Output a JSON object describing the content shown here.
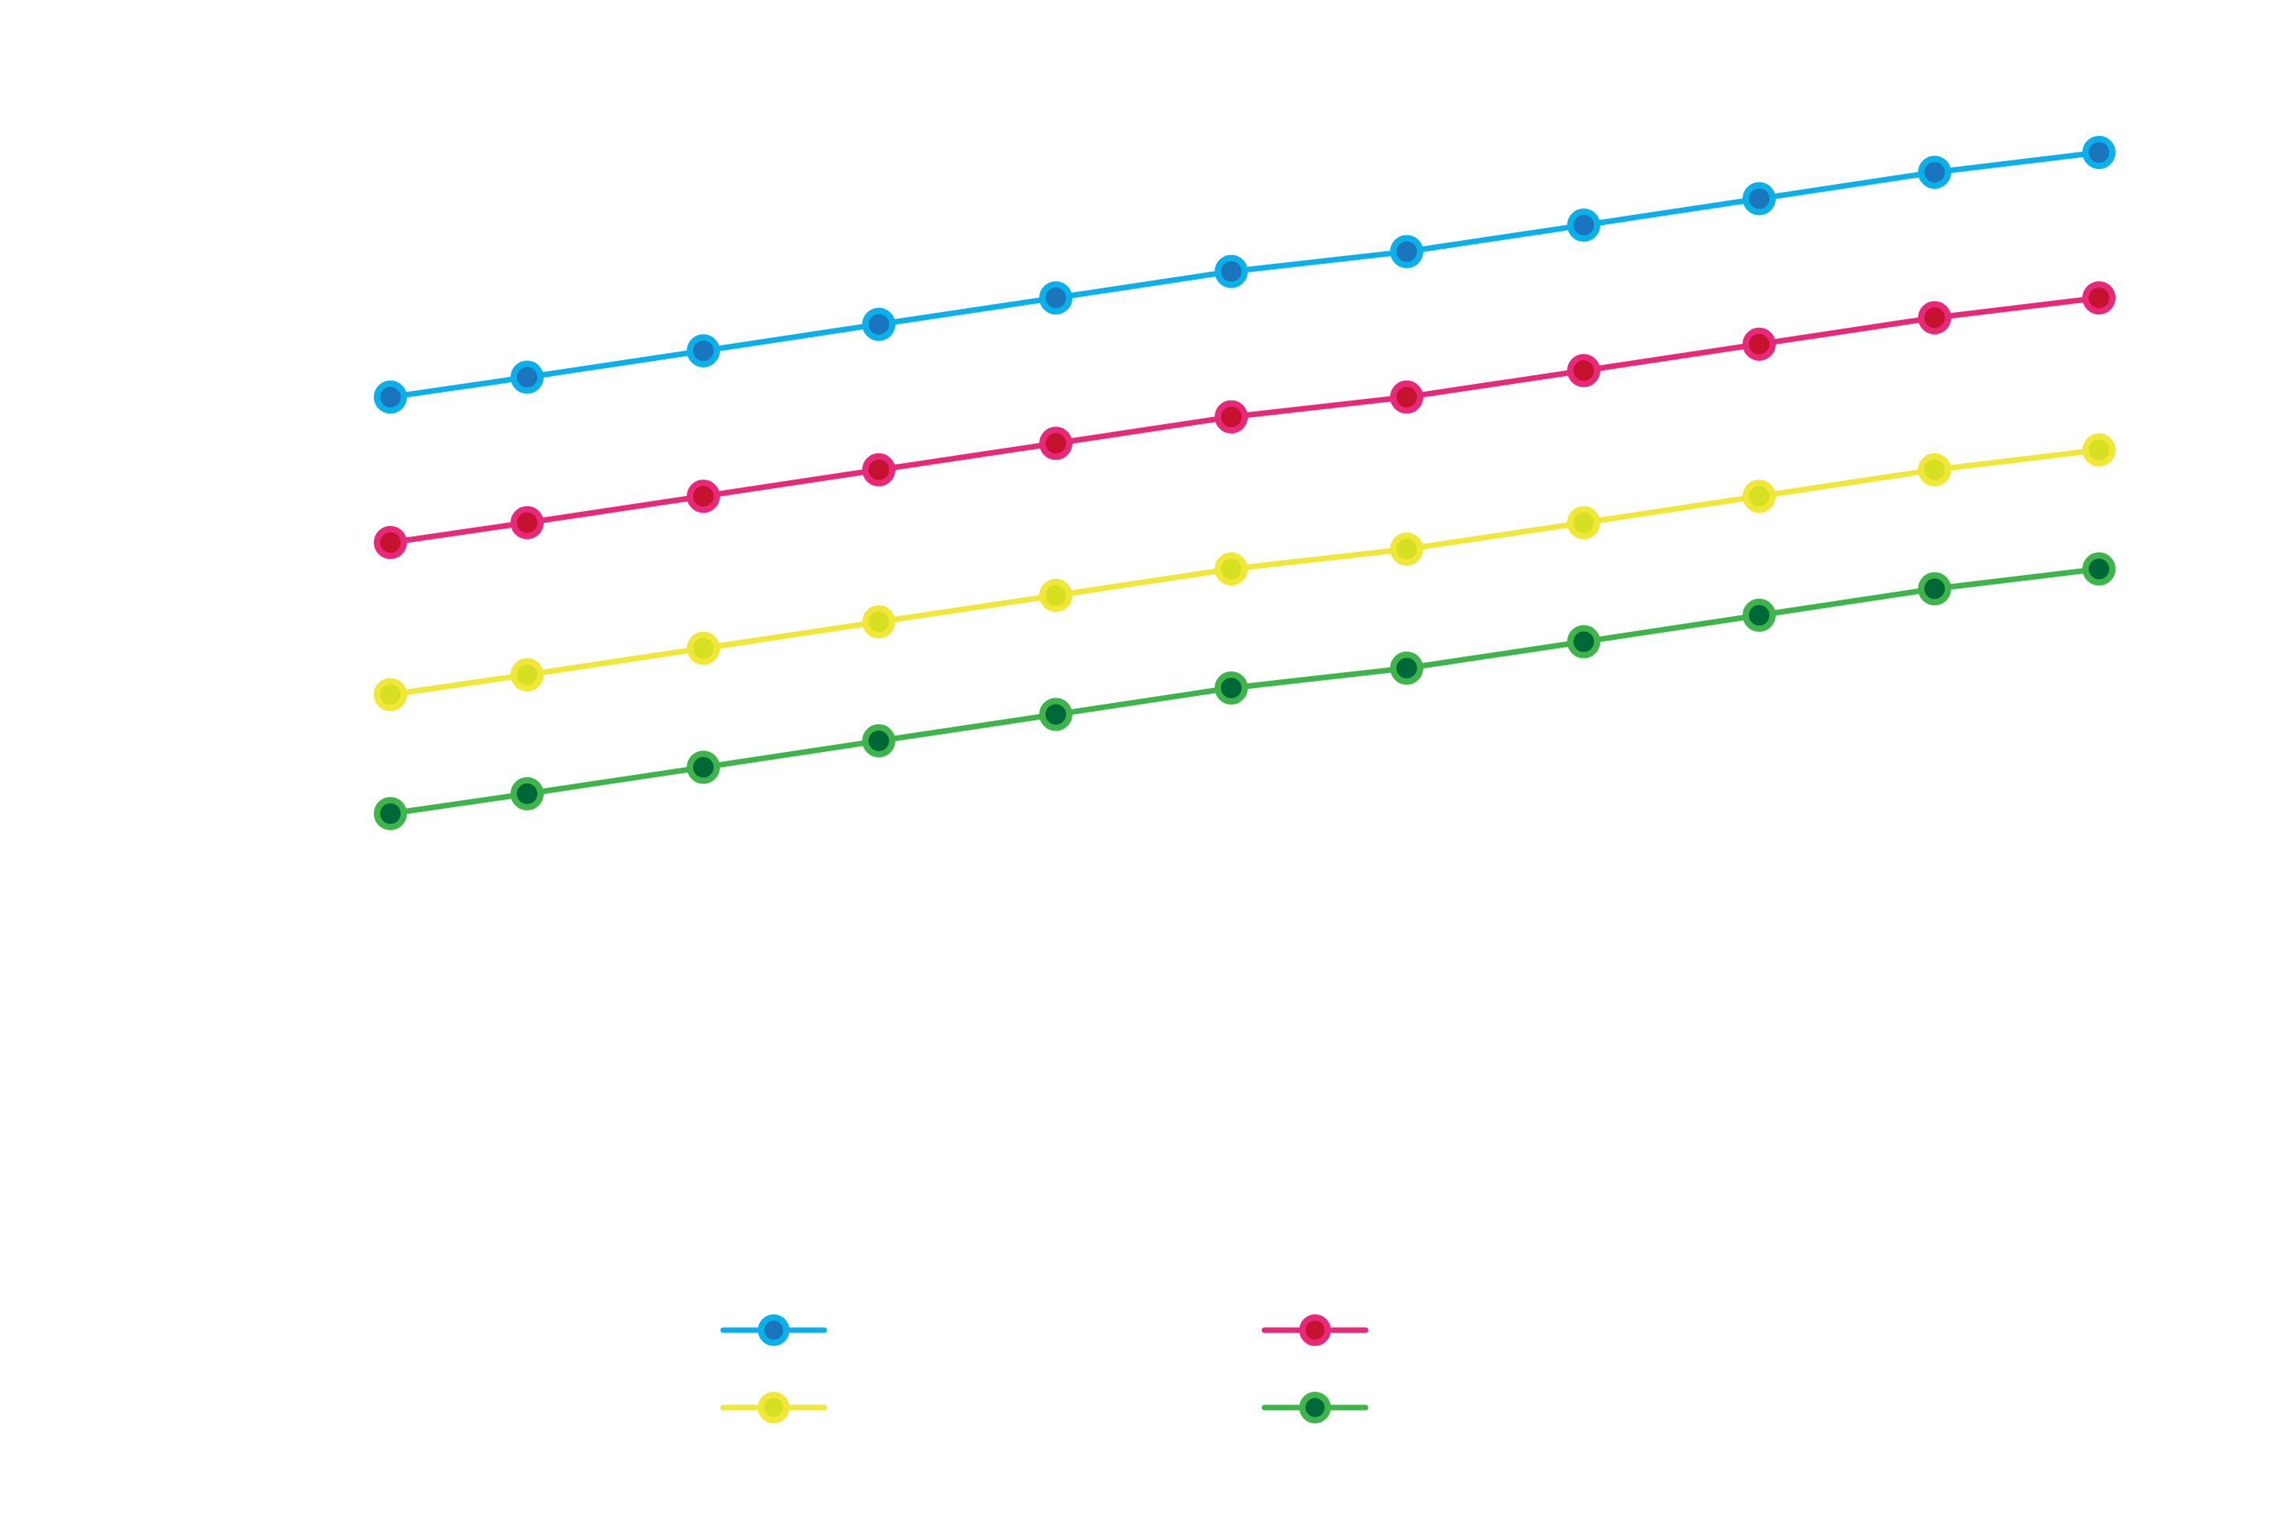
{
  "chart_data": {
    "type": "line",
    "x": [
      1,
      2,
      3,
      4,
      5,
      6,
      7,
      8,
      9,
      10,
      11
    ],
    "series": [
      {
        "line_color": "#0ab0ea",
        "marker_fill": "#1b75bc",
        "values": [
          90,
          93,
          97,
          101,
          105,
          109,
          112,
          116,
          120,
          124,
          127
        ]
      },
      {
        "line_color": "#e8297a",
        "marker_fill": "#c4122f",
        "values": [
          68,
          71,
          75,
          79,
          83,
          87,
          90,
          94,
          98,
          102,
          105
        ]
      },
      {
        "line_color": "#f1e737",
        "marker_fill": "#d7df23",
        "values": [
          45,
          48,
          52,
          56,
          60,
          64,
          67,
          71,
          75,
          79,
          82
        ]
      },
      {
        "line_color": "#3db54a",
        "marker_fill": "#006838",
        "values": [
          27,
          30,
          34,
          38,
          42,
          46,
          49,
          53,
          57,
          61,
          64
        ]
      }
    ],
    "legend": {
      "position": "bottom-center",
      "columns": 2
    },
    "grid": false
  }
}
